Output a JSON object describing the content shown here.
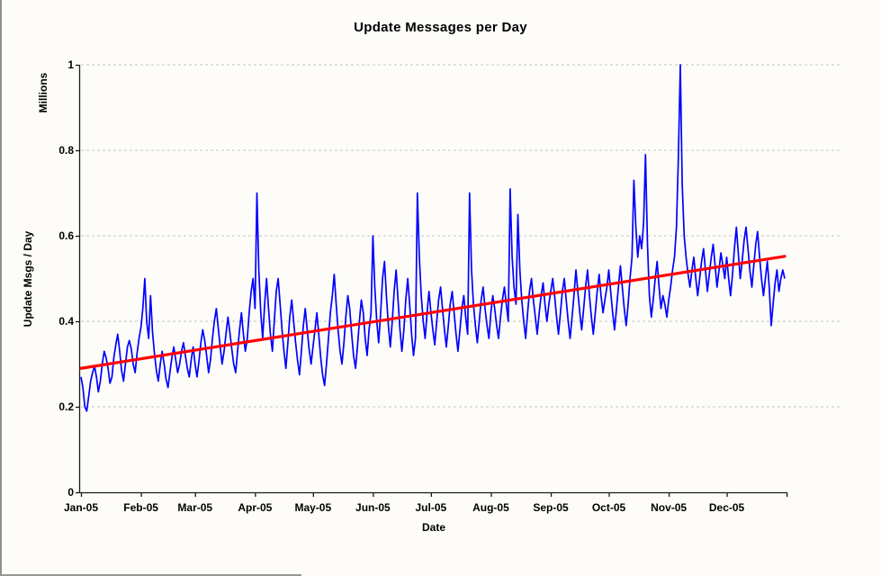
{
  "page": {
    "background_color": "#fdfcf9",
    "frame_color": "#8f8f8f"
  },
  "chart_data": {
    "type": "line",
    "title": "Update Messages per Day",
    "xlabel": "Date",
    "ylabel": "Update Msgs / Day",
    "y_unit_label": "Millions",
    "ylim": [
      0,
      1
    ],
    "y_ticks": [
      "1",
      "0.8",
      "0.6",
      "0.4",
      "0.2",
      "0"
    ],
    "y_tick_values": [
      1,
      0.8,
      0.6,
      0.4,
      0.2,
      0
    ],
    "x_ticks": [
      "Jan-05",
      "Feb-05",
      "Mar-05",
      "Apr-05",
      "May-05",
      "Jun-05",
      "Jul-05",
      "Aug-05",
      "Sep-05",
      "Oct-05",
      "Nov-05",
      "Dec-05"
    ],
    "x_tick_day_offsets": [
      0,
      31,
      59,
      90,
      120,
      151,
      181,
      212,
      243,
      273,
      304,
      334,
      365
    ],
    "grid": "horizontal-dashed",
    "gridline_color": "#c4c4c4",
    "axis_color": "#1a1a1a",
    "legend_position": "none",
    "series": [
      {
        "name": "daily-update-msgs-millions",
        "color": "#0000ff",
        "frequency": "daily",
        "start_label": "Jan-05",
        "values": [
          0.27,
          0.245,
          0.2,
          0.19,
          0.225,
          0.26,
          0.28,
          0.295,
          0.27,
          0.235,
          0.26,
          0.3,
          0.33,
          0.315,
          0.29,
          0.255,
          0.27,
          0.315,
          0.345,
          0.37,
          0.33,
          0.285,
          0.26,
          0.3,
          0.34,
          0.355,
          0.335,
          0.3,
          0.28,
          0.325,
          0.36,
          0.385,
          0.43,
          0.5,
          0.4,
          0.36,
          0.46,
          0.375,
          0.325,
          0.285,
          0.26,
          0.3,
          0.33,
          0.3,
          0.265,
          0.245,
          0.28,
          0.315,
          0.34,
          0.31,
          0.28,
          0.3,
          0.33,
          0.35,
          0.32,
          0.29,
          0.27,
          0.31,
          0.34,
          0.3,
          0.27,
          0.305,
          0.35,
          0.38,
          0.355,
          0.32,
          0.28,
          0.31,
          0.36,
          0.4,
          0.43,
          0.385,
          0.34,
          0.3,
          0.33,
          0.37,
          0.41,
          0.375,
          0.335,
          0.3,
          0.28,
          0.33,
          0.38,
          0.42,
          0.37,
          0.33,
          0.36,
          0.42,
          0.47,
          0.5,
          0.43,
          0.7,
          0.52,
          0.42,
          0.36,
          0.44,
          0.5,
          0.43,
          0.37,
          0.33,
          0.4,
          0.47,
          0.5,
          0.44,
          0.38,
          0.33,
          0.29,
          0.35,
          0.41,
          0.45,
          0.4,
          0.35,
          0.31,
          0.275,
          0.33,
          0.39,
          0.43,
          0.38,
          0.335,
          0.3,
          0.34,
          0.38,
          0.42,
          0.37,
          0.315,
          0.275,
          0.25,
          0.3,
          0.36,
          0.42,
          0.46,
          0.51,
          0.44,
          0.38,
          0.33,
          0.3,
          0.35,
          0.41,
          0.46,
          0.43,
          0.37,
          0.32,
          0.29,
          0.34,
          0.4,
          0.45,
          0.42,
          0.36,
          0.32,
          0.38,
          0.42,
          0.6,
          0.48,
          0.4,
          0.35,
          0.42,
          0.5,
          0.54,
          0.46,
          0.39,
          0.34,
          0.4,
          0.47,
          0.52,
          0.45,
          0.38,
          0.33,
          0.38,
          0.45,
          0.5,
          0.44,
          0.37,
          0.32,
          0.36,
          0.7,
          0.55,
          0.46,
          0.4,
          0.36,
          0.42,
          0.47,
          0.42,
          0.38,
          0.345,
          0.4,
          0.45,
          0.48,
          0.43,
          0.38,
          0.34,
          0.39,
          0.44,
          0.47,
          0.42,
          0.37,
          0.33,
          0.38,
          0.43,
          0.46,
          0.41,
          0.37,
          0.7,
          0.52,
          0.44,
          0.39,
          0.35,
          0.4,
          0.45,
          0.48,
          0.43,
          0.39,
          0.36,
          0.42,
          0.46,
          0.43,
          0.39,
          0.36,
          0.41,
          0.45,
          0.48,
          0.44,
          0.4,
          0.71,
          0.55,
          0.48,
          0.44,
          0.65,
          0.52,
          0.45,
          0.4,
          0.36,
          0.42,
          0.47,
          0.5,
          0.45,
          0.41,
          0.37,
          0.42,
          0.46,
          0.49,
          0.44,
          0.4,
          0.44,
          0.47,
          0.5,
          0.46,
          0.41,
          0.37,
          0.42,
          0.47,
          0.5,
          0.45,
          0.4,
          0.36,
          0.41,
          0.46,
          0.52,
          0.47,
          0.42,
          0.38,
          0.43,
          0.48,
          0.52,
          0.46,
          0.41,
          0.37,
          0.42,
          0.47,
          0.51,
          0.46,
          0.42,
          0.45,
          0.48,
          0.52,
          0.47,
          0.42,
          0.38,
          0.43,
          0.48,
          0.53,
          0.48,
          0.43,
          0.39,
          0.44,
          0.5,
          0.55,
          0.73,
          0.62,
          0.55,
          0.6,
          0.57,
          0.63,
          0.79,
          0.58,
          0.46,
          0.41,
          0.45,
          0.5,
          0.54,
          0.48,
          0.43,
          0.46,
          0.44,
          0.41,
          0.45,
          0.48,
          0.52,
          0.55,
          0.62,
          0.78,
          1.0,
          0.72,
          0.6,
          0.55,
          0.51,
          0.48,
          0.52,
          0.55,
          0.5,
          0.46,
          0.5,
          0.54,
          0.57,
          0.52,
          0.47,
          0.51,
          0.55,
          0.58,
          0.53,
          0.48,
          0.52,
          0.56,
          0.53,
          0.5,
          0.55,
          0.5,
          0.46,
          0.51,
          0.57,
          0.62,
          0.56,
          0.5,
          0.54,
          0.59,
          0.62,
          0.57,
          0.52,
          0.48,
          0.53,
          0.58,
          0.61,
          0.55,
          0.5,
          0.46,
          0.5,
          0.54,
          0.48,
          0.39,
          0.44,
          0.49,
          0.52,
          0.47,
          0.5,
          0.52,
          0.5
        ]
      },
      {
        "name": "linear-trend",
        "color": "#ff0000",
        "trend": {
          "start": 0.29,
          "end": 0.552
        }
      }
    ]
  }
}
